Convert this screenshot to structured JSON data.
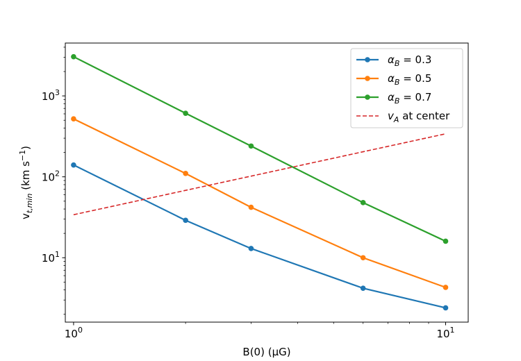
{
  "chart_data": {
    "type": "line",
    "title": "",
    "xscale": "log",
    "yscale": "log",
    "xlabel": "B(0) (μG)",
    "ylabel": "v",
    "ylabel_sub": "t,min",
    "ylabel_unit_prefix": " (km s",
    "ylabel_unit_sup": "−1",
    "ylabel_unit_suffix": ")",
    "xlim": [
      0.95,
      11.5
    ],
    "ylim": [
      1.6,
      4500
    ],
    "x_major_ticks": [
      {
        "value": 1,
        "base": "10",
        "exp": "0"
      },
      {
        "value": 10,
        "base": "10",
        "exp": "1"
      }
    ],
    "y_major_ticks": [
      {
        "value": 10,
        "base": "10",
        "exp": "1"
      },
      {
        "value": 100,
        "base": "10",
        "exp": "2"
      },
      {
        "value": 1000,
        "base": "10",
        "exp": "3"
      }
    ],
    "legend_position": "top-right",
    "series": [
      {
        "name": "α_B = 0.3",
        "legend_sym": "α",
        "legend_sub": "B",
        "legend_rest": " = 0.3",
        "color": "#1f77b4",
        "style": "solid",
        "marker": "circle",
        "x": [
          1,
          2,
          3,
          6,
          10
        ],
        "y": [
          140,
          29,
          13,
          4.2,
          2.4
        ]
      },
      {
        "name": "α_B = 0.5",
        "legend_sym": "α",
        "legend_sub": "B",
        "legend_rest": " = 0.5",
        "color": "#ff7f0e",
        "style": "solid",
        "marker": "circle",
        "x": [
          1,
          2,
          3,
          6,
          10
        ],
        "y": [
          520,
          110,
          42,
          10,
          4.3
        ]
      },
      {
        "name": "α_B = 0.7",
        "legend_sym": "α",
        "legend_sub": "B",
        "legend_rest": " = 0.7",
        "color": "#2ca02c",
        "style": "solid",
        "marker": "circle",
        "x": [
          1,
          2,
          3,
          6,
          10
        ],
        "y": [
          3050,
          610,
          240,
          48,
          16
        ]
      },
      {
        "name": "v_A at center",
        "legend_sym": "v",
        "legend_sub": "A",
        "legend_rest": " at center",
        "color": "#d62728",
        "style": "dashed",
        "marker": "none",
        "x": [
          1,
          10
        ],
        "y": [
          34,
          340
        ]
      }
    ]
  }
}
